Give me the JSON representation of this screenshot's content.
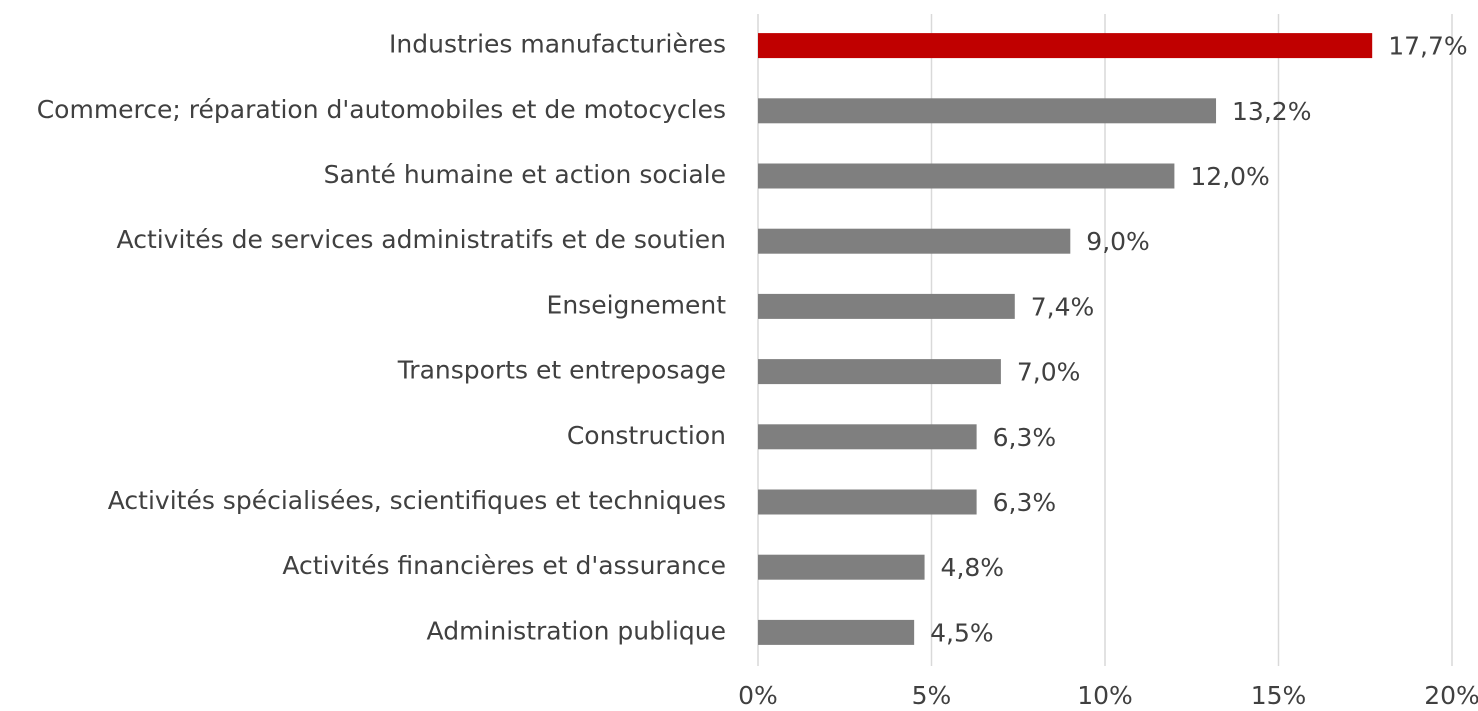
{
  "chart_data": {
    "type": "hbar",
    "categories": [
      "Industries manufacturières",
      "Commerce; réparation d'automobiles et de motocycles",
      "Santé humaine et action sociale",
      "Activités de services administratifs et de soutien",
      "Enseignement",
      "Transports et entreposage",
      "Construction",
      "Activités spécialisées, scientifiques et techniques",
      "Activités financières et d'assurance",
      "Administration publique"
    ],
    "values": [
      17.7,
      13.2,
      12.0,
      9.0,
      7.4,
      7.0,
      6.3,
      6.3,
      4.8,
      4.5
    ],
    "value_labels": [
      "17,7%",
      "13,2%",
      "12,0%",
      "9,0%",
      "7,4%",
      "7,0%",
      "6,3%",
      "6,3%",
      "4,8%",
      "4,5%"
    ],
    "colors": [
      "#c00000",
      "#7f7f7f",
      "#7f7f7f",
      "#7f7f7f",
      "#7f7f7f",
      "#7f7f7f",
      "#7f7f7f",
      "#7f7f7f",
      "#7f7f7f",
      "#7f7f7f"
    ],
    "xlim": [
      0,
      20
    ],
    "xticks": [
      {
        "value": 0,
        "label": "0%"
      },
      {
        "value": 5,
        "label": "5%"
      },
      {
        "value": 10,
        "label": "10%"
      },
      {
        "value": 15,
        "label": "15%"
      },
      {
        "value": 20,
        "label": "20%"
      }
    ],
    "grid": true
  }
}
